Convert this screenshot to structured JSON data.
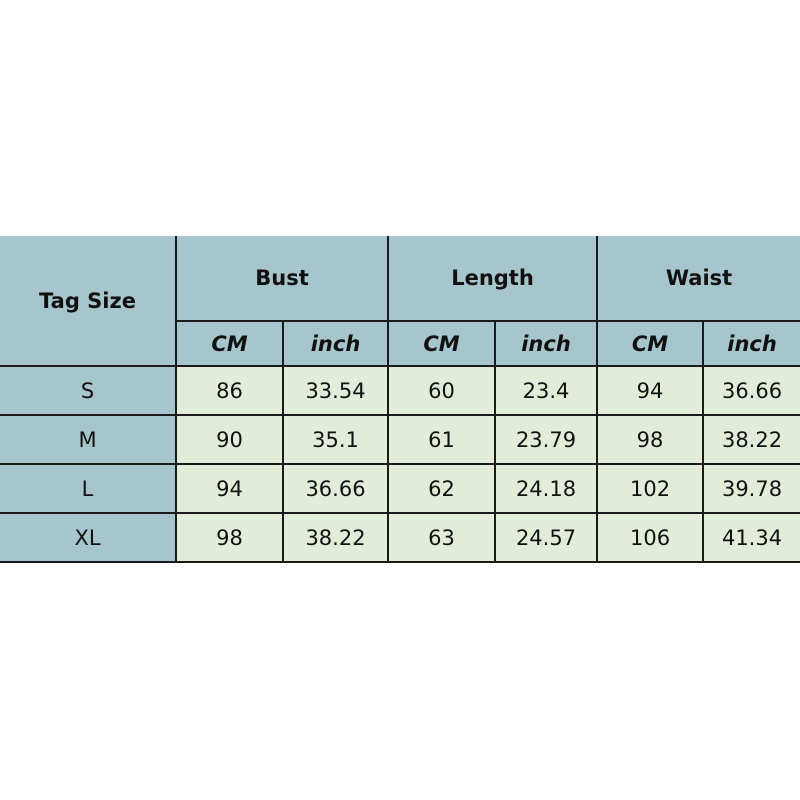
{
  "colors": {
    "header": "#a6c5cc",
    "cell": "#e1edd9",
    "border": "#1a1a1a"
  },
  "header": {
    "tag_size": "Tag Size",
    "groups": [
      "Bust",
      "Length",
      "Waist"
    ],
    "units": [
      "CM",
      "inch",
      "CM",
      "inch",
      "CM",
      "inch"
    ]
  },
  "rows": [
    {
      "size": "S",
      "values": [
        "86",
        "33.54",
        "60",
        "23.4",
        "94",
        "36.66"
      ]
    },
    {
      "size": "M",
      "values": [
        "90",
        "35.1",
        "61",
        "23.79",
        "98",
        "38.22"
      ]
    },
    {
      "size": "L",
      "values": [
        "94",
        "36.66",
        "62",
        "24.18",
        "102",
        "39.78"
      ]
    },
    {
      "size": "XL",
      "values": [
        "98",
        "38.22",
        "63",
        "24.57",
        "106",
        "41.34"
      ]
    }
  ]
}
